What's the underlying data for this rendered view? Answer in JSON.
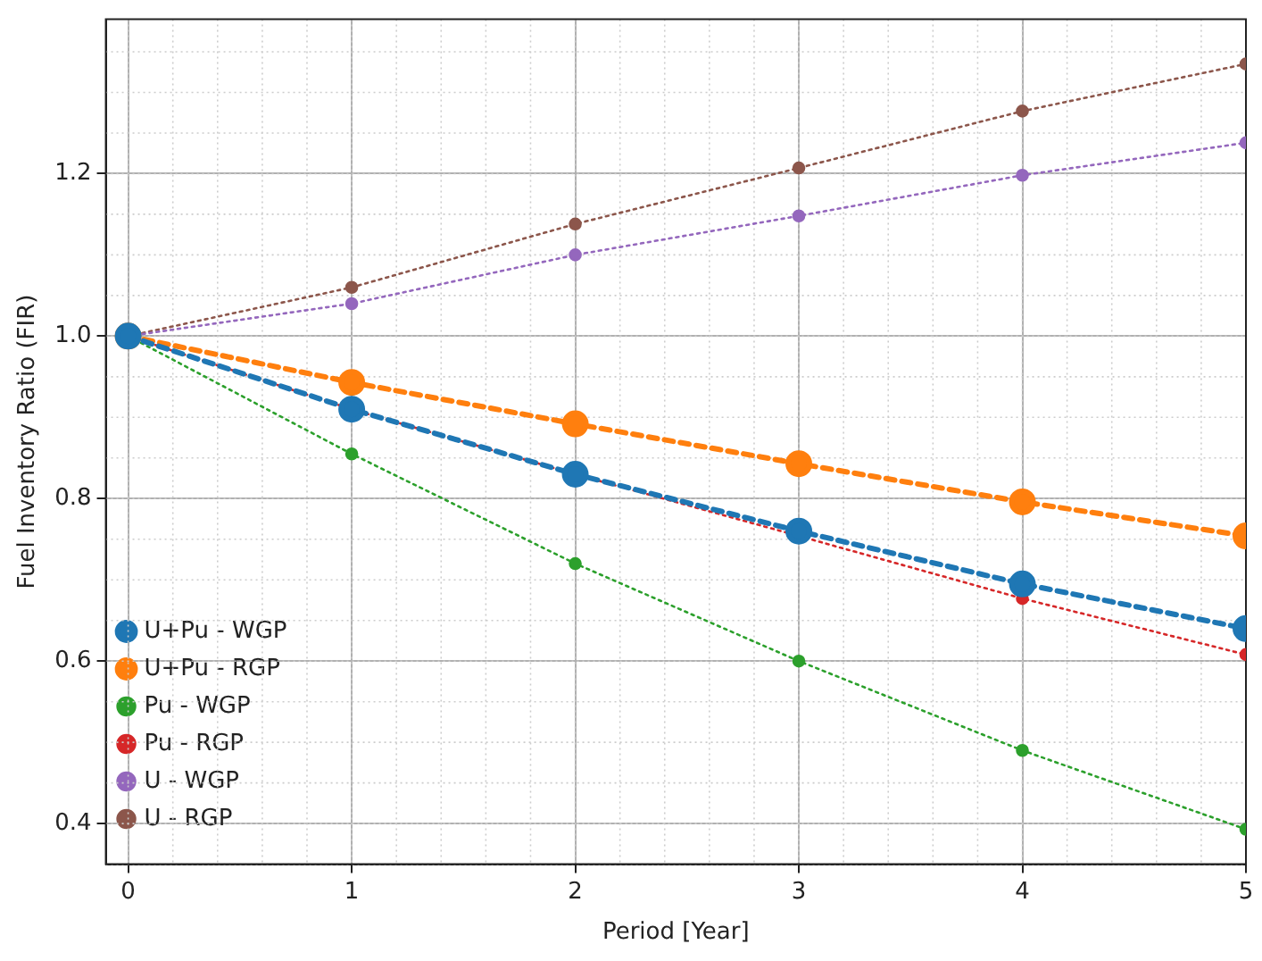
{
  "chart_data": {
    "type": "line",
    "xlabel": "Period [Year]",
    "ylabel": "Fuel Inventory Ratio (FIR)",
    "x": [
      0,
      1,
      2,
      3,
      4,
      5
    ],
    "series": [
      {
        "name": "U+Pu - WGP",
        "color": "#1f77b4",
        "line_style": "dashed",
        "values": [
          1,
          0.91,
          0.83,
          0.76,
          0.695,
          0.64
        ]
      },
      {
        "name": "U+Pu - RGP",
        "color": "#ff7f0e",
        "line_style": "dashed",
        "values": [
          1,
          0.943,
          0.892,
          0.843,
          0.796,
          0.754
        ]
      },
      {
        "name": "Pu - WGP",
        "color": "#2ca02c",
        "line_style": "dotted",
        "values": [
          1,
          0.855,
          0.72,
          0.6,
          0.49,
          0.393
        ]
      },
      {
        "name": "Pu - RGP",
        "color": "#d62728",
        "line_style": "dotted",
        "values": [
          1,
          0.91,
          0.83,
          0.754,
          0.677,
          0.608
        ]
      },
      {
        "name": "U - WGP",
        "color": "#9467bd",
        "line_style": "dotted",
        "values": [
          1,
          1.04,
          1.1,
          1.148,
          1.198,
          1.238
        ]
      },
      {
        "name": "U - RGP",
        "color": "#8c564b",
        "line_style": "dotted",
        "values": [
          1,
          1.06,
          1.138,
          1.207,
          1.277,
          1.335
        ]
      }
    ],
    "xlim": [
      -0.1,
      5
    ],
    "ylim": [
      0.35,
      1.39
    ],
    "xticks": [
      0,
      1,
      2,
      3,
      4,
      5
    ],
    "yticks": [
      0.4,
      0.6,
      0.8,
      {
        "value": 1.0,
        "label": "1.0"
      },
      1.2
    ],
    "grid": true,
    "legend": "bottom left",
    "marker": "circle"
  }
}
